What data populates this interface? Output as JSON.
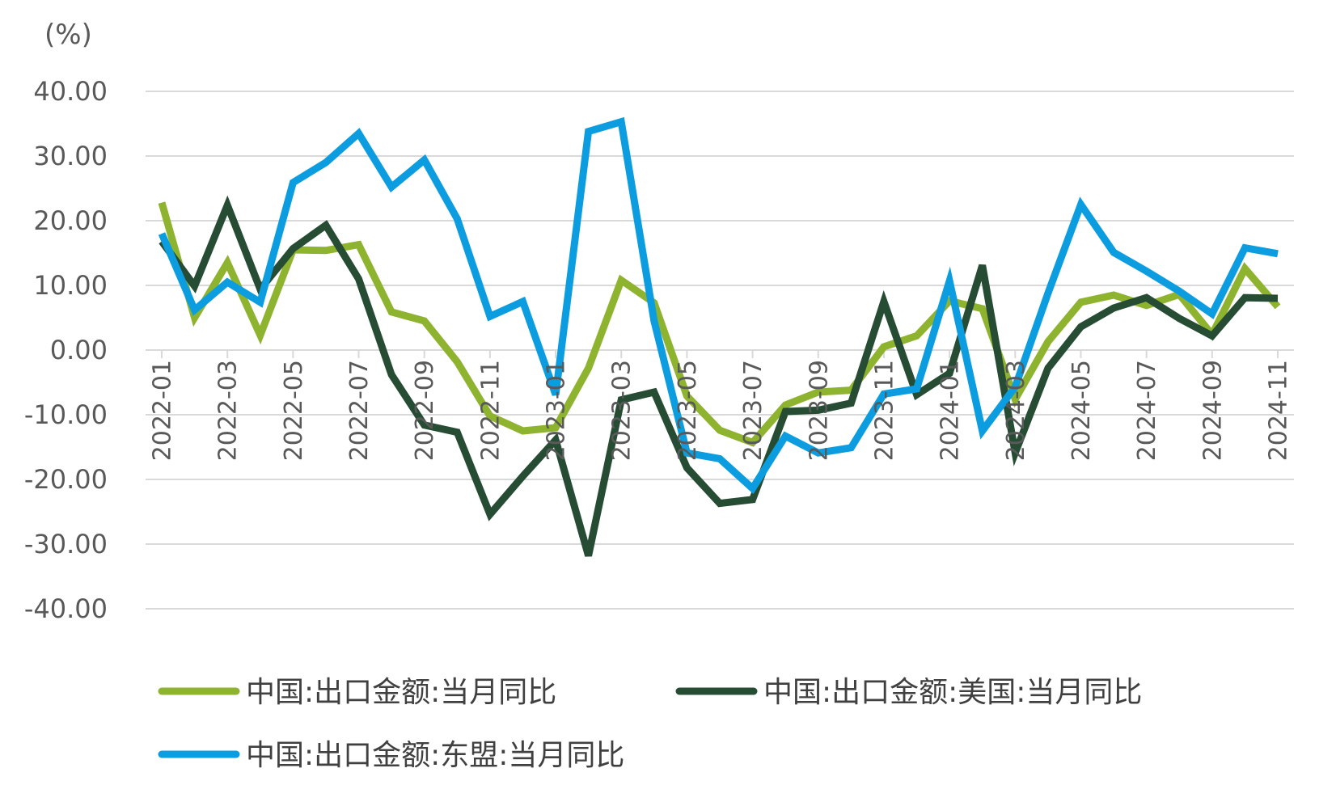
{
  "chart_data": {
    "type": "line",
    "unit_label": "(%)",
    "ylim": [
      -40,
      40
    ],
    "yticks": [
      "40.00",
      "30.00",
      "20.00",
      "10.00",
      "0.00",
      "-10.00",
      "-20.00",
      "-30.00",
      "-40.00"
    ],
    "grid": true,
    "legend_position": "bottom",
    "x": [
      "2022-01",
      "2022-02",
      "2022-03",
      "2022-04",
      "2022-05",
      "2022-06",
      "2022-07",
      "2022-08",
      "2022-09",
      "2022-10",
      "2022-11",
      "2022-12",
      "2023-01",
      "2023-02",
      "2023-03",
      "2023-04",
      "2023-05",
      "2023-06",
      "2023-07",
      "2023-08",
      "2023-09",
      "2023-10",
      "2023-11",
      "2023-12",
      "2024-01",
      "2024-02",
      "2024-03",
      "2024-04",
      "2024-05",
      "2024-06",
      "2024-07",
      "2024-08",
      "2024-09",
      "2024-10",
      "2024-11"
    ],
    "xtick_labels": [
      "2022-01",
      "2022-03",
      "2022-05",
      "2022-07",
      "2022-09",
      "2022-11",
      "2023-01",
      "2023-03",
      "2023-05",
      "2023-07",
      "2023-09",
      "2023-11",
      "2024-01",
      "2024-03",
      "2024-05",
      "2024-07",
      "2024-09",
      "2024-11"
    ],
    "series": [
      {
        "name": "中国:出口金额:当月同比",
        "color": "#8db32f",
        "values": [
          22.8,
          5.0,
          13.5,
          2.3,
          15.5,
          15.4,
          16.3,
          5.9,
          4.5,
          -1.8,
          -10.2,
          -12.5,
          -12.0,
          -2.8,
          10.8,
          7.3,
          -7.1,
          -12.4,
          -14.3,
          -8.5,
          -6.5,
          -6.2,
          0.5,
          2.2,
          7.6,
          6.4,
          -7.6,
          1.3,
          7.4,
          8.5,
          6.9,
          8.6,
          2.4,
          12.6,
          6.7
        ]
      },
      {
        "name": "中国:出口金额:美国:当月同比",
        "color": "#264d33",
        "values": [
          16.8,
          9.9,
          22.4,
          9.4,
          15.7,
          19.3,
          11.0,
          -3.8,
          -11.6,
          -12.7,
          -25.4,
          -19.5,
          -13.9,
          -31.8,
          -7.7,
          -6.5,
          -18.2,
          -23.7,
          -23.1,
          -9.5,
          -9.3,
          -8.2,
          7.5,
          -6.9,
          -3.6,
          13.1,
          -15.9,
          -2.8,
          3.6,
          6.5,
          8.1,
          4.9,
          2.2,
          8.1,
          8.0
        ]
      },
      {
        "name": "中国:出口金额:东盟:当月同比",
        "color": "#0c9de0",
        "values": [
          18.0,
          6.2,
          10.5,
          7.4,
          25.9,
          29.0,
          33.5,
          25.2,
          29.4,
          20.3,
          5.2,
          7.5,
          -6.9,
          33.8,
          35.3,
          4.5,
          -15.9,
          -16.8,
          -21.4,
          -13.3,
          -15.9,
          -15.1,
          -6.8,
          -6.0,
          10.7,
          -12.5,
          -5.7,
          8.8,
          22.5,
          15.1,
          12.2,
          9.1,
          5.6,
          15.8,
          14.9
        ]
      }
    ]
  }
}
